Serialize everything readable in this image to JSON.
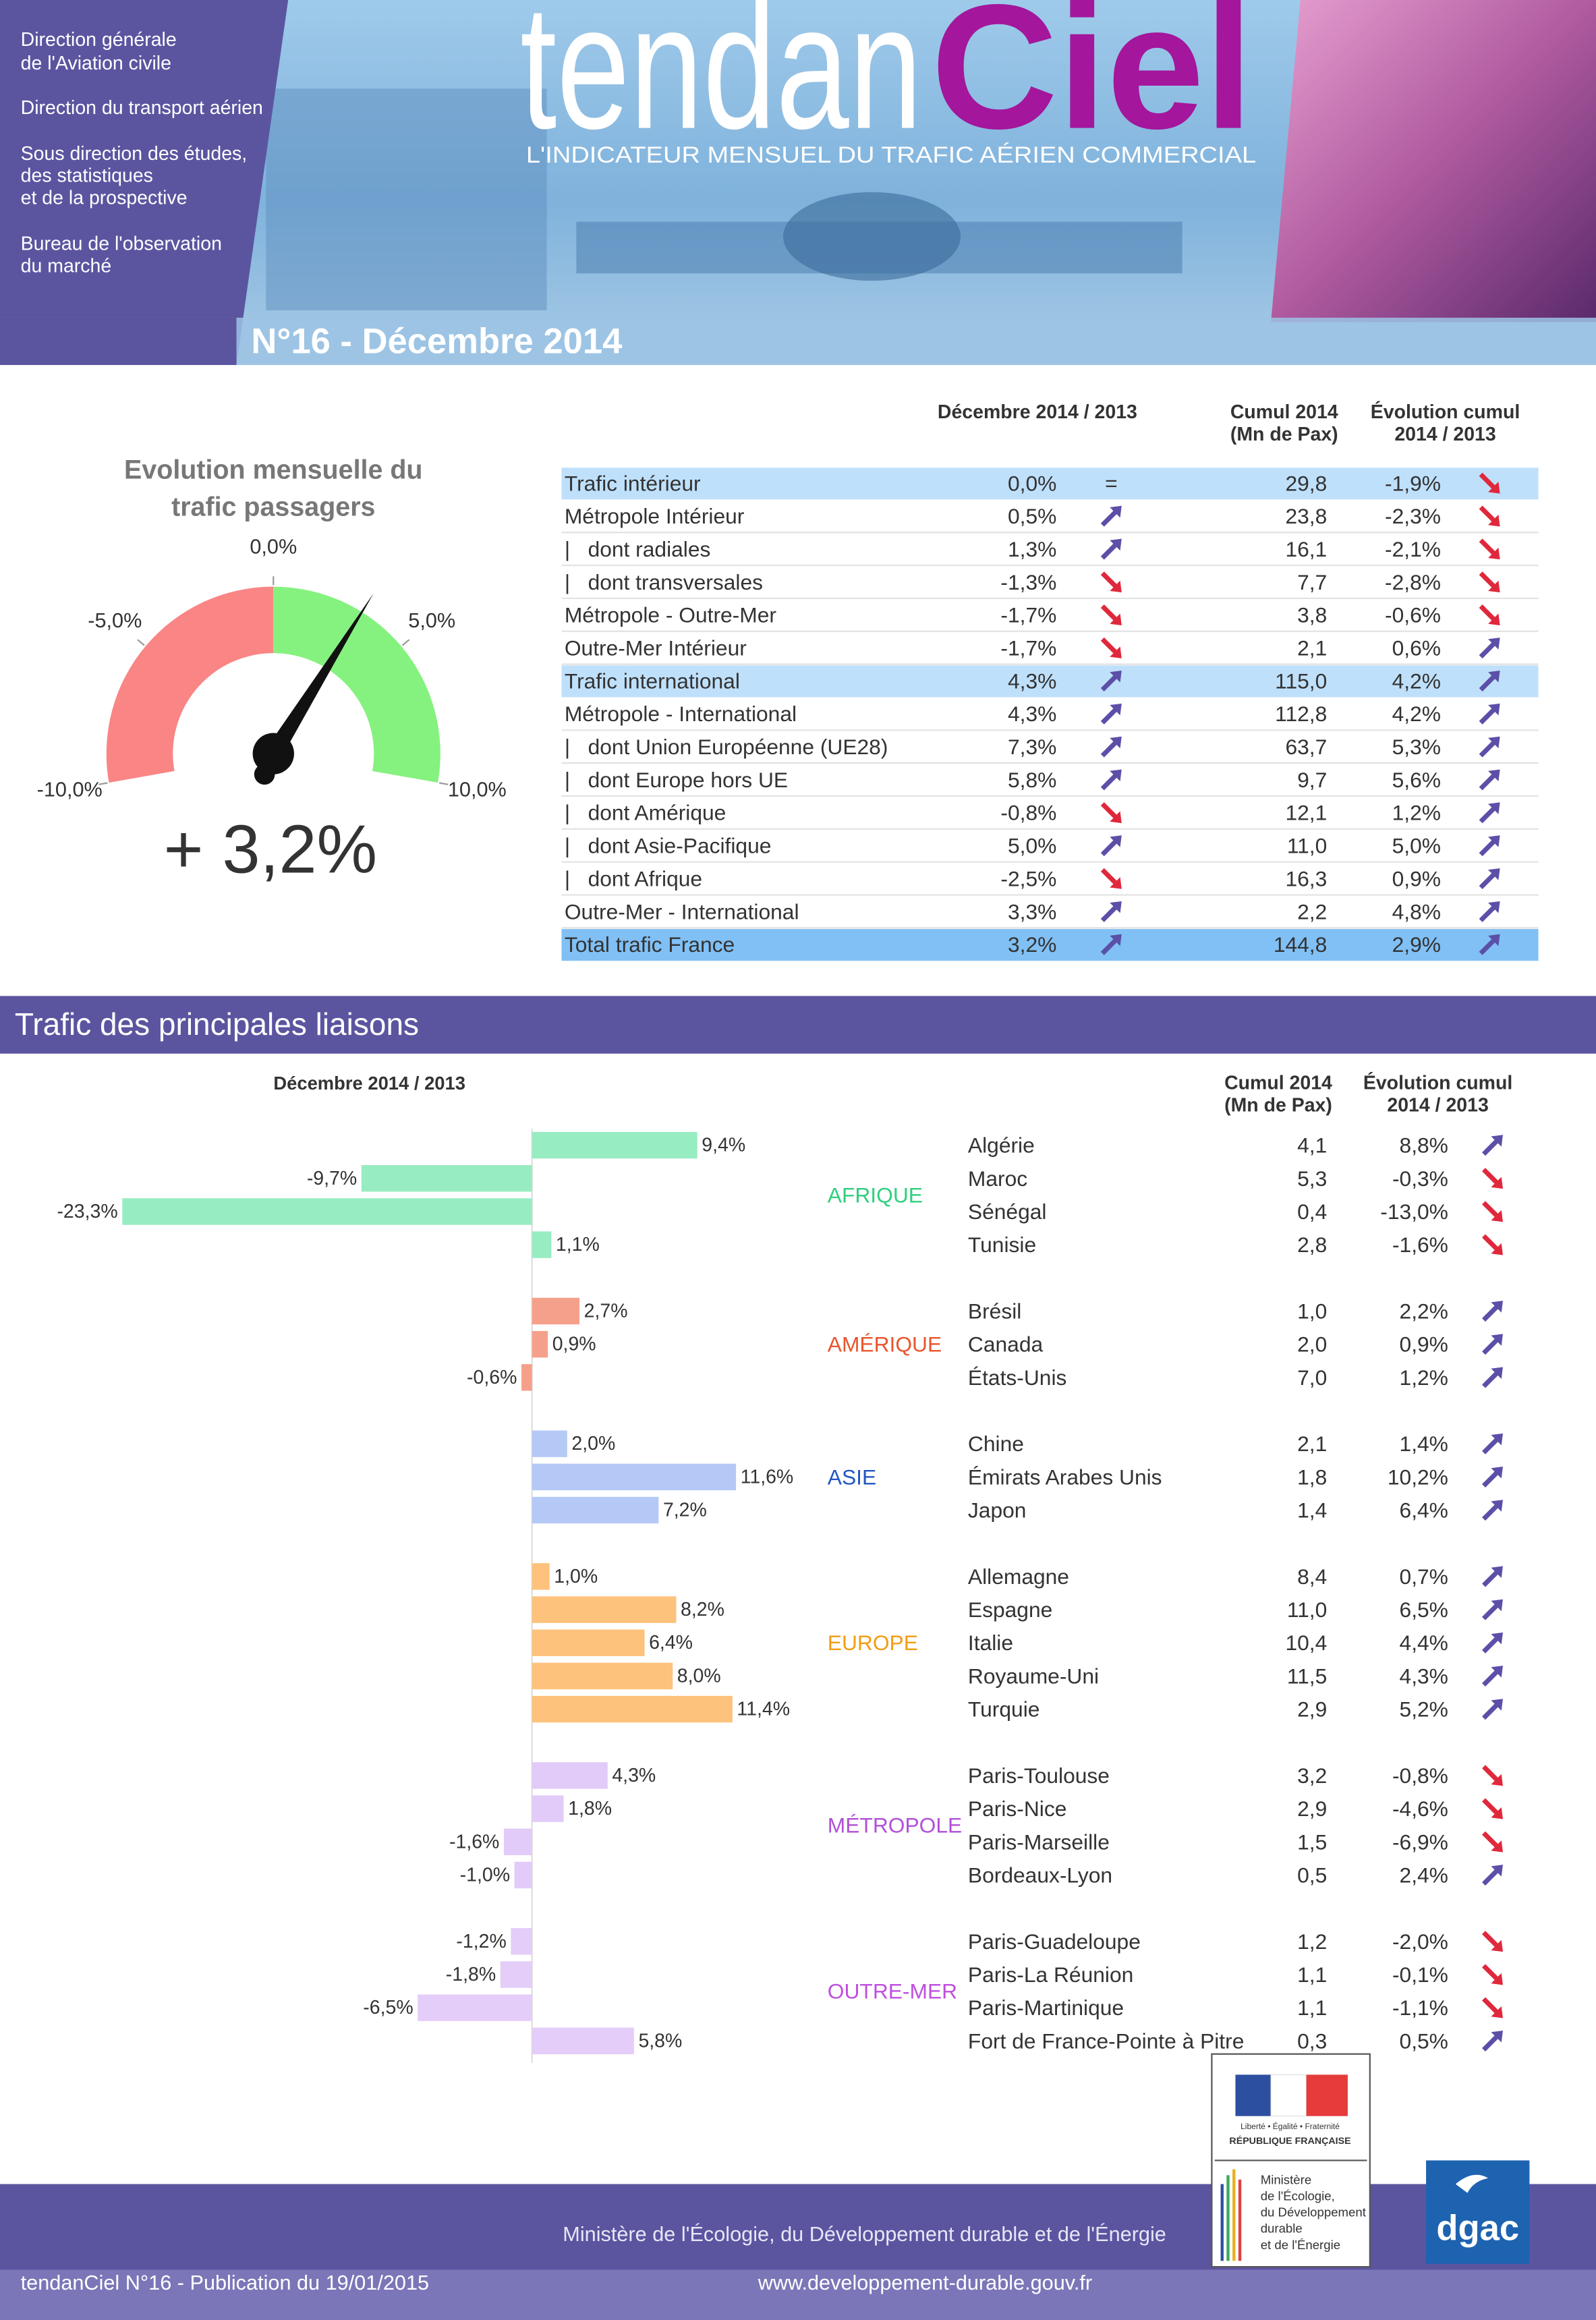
{
  "header": {
    "org_lines": [
      "Direction générale",
      "de l'Aviation civile",
      "Direction du transport aérien",
      "Sous direction des études,",
      "des statistiques",
      "et de la prospective",
      "Bureau de l'observation",
      "du marché"
    ],
    "title_a": "tendan",
    "title_b": "Ciel",
    "subtitle": "L'INDICATEUR MENSUEL DU TRAFIC AÉRIEN COMMERCIAL",
    "issue": "N°16 - Décembre 2014"
  },
  "gauge": {
    "title_lines": [
      "Evolution mensuelle du",
      "trafic passagers"
    ],
    "value": 3.2,
    "value_label": "+ 3,2%",
    "lim": [
      -10,
      10
    ],
    "ticks": [
      {
        "value": -10,
        "label": "-10,0%"
      },
      {
        "value": -5,
        "label": "-5,0%"
      },
      {
        "value": 0,
        "label": "0,0%"
      },
      {
        "value": 5,
        "label": "5,0%"
      },
      {
        "value": 10,
        "label": "10,0%"
      }
    ]
  },
  "table": {
    "headers": [
      [
        "Décembre 2014 / 2013"
      ],
      [
        "Cumul 2014",
        "(Mn de Pax)"
      ],
      [
        "Évolution cumul",
        "2014 / 2013"
      ]
    ],
    "rows": [
      {
        "label": "Trafic intérieur",
        "dec": "0,0%",
        "trend": "=",
        "cumul": "29,8",
        "evol": "-1,9%",
        "evol_trend": "down",
        "style": "highlight"
      },
      {
        "label": "Métropole Intérieur",
        "dec": "0,5%",
        "trend": "up",
        "cumul": "23,8",
        "evol": "-2,3%",
        "evol_trend": "down"
      },
      {
        "label": "|   dont radiales",
        "dec": "1,3%",
        "trend": "up",
        "cumul": "16,1",
        "evol": "-2,1%",
        "evol_trend": "down"
      },
      {
        "label": "|   dont transversales",
        "dec": "-1,3%",
        "trend": "down",
        "cumul": "7,7",
        "evol": "-2,8%",
        "evol_trend": "down"
      },
      {
        "label": "Métropole - Outre-Mer",
        "dec": "-1,7%",
        "trend": "down",
        "cumul": "3,8",
        "evol": "-0,6%",
        "evol_trend": "down"
      },
      {
        "label": "Outre-Mer Intérieur",
        "dec": "-1,7%",
        "trend": "down",
        "cumul": "2,1",
        "evol": "0,6%",
        "evol_trend": "up"
      },
      {
        "label": "Trafic international",
        "dec": "4,3%",
        "trend": "up",
        "cumul": "115,0",
        "evol": "4,2%",
        "evol_trend": "up",
        "style": "highlight"
      },
      {
        "label": "Métropole - International",
        "dec": "4,3%",
        "trend": "up",
        "cumul": "112,8",
        "evol": "4,2%",
        "evol_trend": "up"
      },
      {
        "label": "|   dont Union Européenne (UE28)",
        "dec": "7,3%",
        "trend": "up",
        "cumul": "63,7",
        "evol": "5,3%",
        "evol_trend": "up"
      },
      {
        "label": "|   dont Europe hors UE",
        "dec": "5,8%",
        "trend": "up",
        "cumul": "9,7",
        "evol": "5,6%",
        "evol_trend": "up"
      },
      {
        "label": "|   dont Amérique",
        "dec": "-0,8%",
        "trend": "down",
        "cumul": "12,1",
        "evol": "1,2%",
        "evol_trend": "up"
      },
      {
        "label": "|   dont Asie-Pacifique",
        "dec": "5,0%",
        "trend": "up",
        "cumul": "11,0",
        "evol": "5,0%",
        "evol_trend": "up"
      },
      {
        "label": "|   dont Afrique",
        "dec": "-2,5%",
        "trend": "down",
        "cumul": "16,3",
        "evol": "0,9%",
        "evol_trend": "up"
      },
      {
        "label": "Outre-Mer - International",
        "dec": "3,3%",
        "trend": "up",
        "cumul": "2,2",
        "evol": "4,8%",
        "evol_trend": "up"
      },
      {
        "label": "Total trafic France",
        "dec": "3,2%",
        "trend": "up",
        "cumul": "144,8",
        "evol": "2,9%",
        "evol_trend": "up",
        "style": "total"
      }
    ]
  },
  "liaisons": {
    "title": "Trafic des principales liaisons",
    "bar_header": "Décembre 2014 / 2013",
    "headers": [
      [
        "Cumul 2014",
        "(Mn de Pax)"
      ],
      [
        "Évolution cumul",
        "2014 / 2013"
      ]
    ],
    "groups": [
      {
        "name": "AFRIQUE",
        "color": "#2fcf7f",
        "bar_color": "#98ecc2",
        "items": [
          {
            "label": "Algérie",
            "value": 9.4,
            "value_label": "9,4%",
            "cumul": "4,1",
            "evol": "8,8%",
            "trend": "up"
          },
          {
            "label": "Maroc",
            "value": -9.7,
            "value_label": "-9,7%",
            "cumul": "5,3",
            "evol": "-0,3%",
            "trend": "down"
          },
          {
            "label": "Sénégal",
            "value": -23.3,
            "value_label": "-23,3%",
            "cumul": "0,4",
            "evol": "-13,0%",
            "trend": "down"
          },
          {
            "label": "Tunisie",
            "value": 1.1,
            "value_label": "1,1%",
            "cumul": "2,8",
            "evol": "-1,6%",
            "trend": "down"
          }
        ]
      },
      {
        "name": "AMÉRIQUE",
        "color": "#e8552e",
        "bar_color": "#f5a08a",
        "items": [
          {
            "label": "Brésil",
            "value": 2.7,
            "value_label": "2,7%",
            "cumul": "1,0",
            "evol": "2,2%",
            "trend": "up"
          },
          {
            "label": "Canada",
            "value": 0.9,
            "value_label": "0,9%",
            "cumul": "2,0",
            "evol": "0,9%",
            "trend": "up"
          },
          {
            "label": "États-Unis",
            "value": -0.6,
            "value_label": "-0,6%",
            "cumul": "7,0",
            "evol": "1,2%",
            "trend": "up"
          }
        ]
      },
      {
        "name": "ASIE",
        "color": "#2255c4",
        "bar_color": "#b5c9f6",
        "items": [
          {
            "label": "Chine",
            "value": 2.0,
            "value_label": "2,0%",
            "cumul": "2,1",
            "evol": "1,4%",
            "trend": "up"
          },
          {
            "label": "Émirats Arabes Unis",
            "value": 11.6,
            "value_label": "11,6%",
            "cumul": "1,8",
            "evol": "10,2%",
            "trend": "up"
          },
          {
            "label": "Japon",
            "value": 7.2,
            "value_label": "7,2%",
            "cumul": "1,4",
            "evol": "6,4%",
            "trend": "up"
          }
        ]
      },
      {
        "name": "EUROPE",
        "color": "#f39c12",
        "bar_color": "#fdc27c",
        "items": [
          {
            "label": "Allemagne",
            "value": 1.0,
            "value_label": "1,0%",
            "cumul": "8,4",
            "evol": "0,7%",
            "trend": "up"
          },
          {
            "label": "Espagne",
            "value": 8.2,
            "value_label": "8,2%",
            "cumul": "11,0",
            "evol": "6,5%",
            "trend": "up"
          },
          {
            "label": "Italie",
            "value": 6.4,
            "value_label": "6,4%",
            "cumul": "10,4",
            "evol": "4,4%",
            "trend": "up"
          },
          {
            "label": "Royaume-Uni",
            "value": 8.0,
            "value_label": "8,0%",
            "cumul": "11,5",
            "evol": "4,3%",
            "trend": "up"
          },
          {
            "label": "Turquie",
            "value": 11.4,
            "value_label": "11,4%",
            "cumul": "2,9",
            "evol": "5,2%",
            "trend": "up"
          }
        ]
      },
      {
        "name": "MÉTROPOLE",
        "color": "#b24fd6",
        "bar_color": "#e2cbf8",
        "items": [
          {
            "label": "Paris-Toulouse",
            "value": 4.3,
            "value_label": "4,3%",
            "cumul": "3,2",
            "evol": "-0,8%",
            "trend": "down"
          },
          {
            "label": "Paris-Nice",
            "value": 1.8,
            "value_label": "1,8%",
            "cumul": "2,9",
            "evol": "-4,6%",
            "trend": "down"
          },
          {
            "label": "Paris-Marseille",
            "value": -1.6,
            "value_label": "-1,6%",
            "cumul": "1,5",
            "evol": "-6,9%",
            "trend": "down"
          },
          {
            "label": "Bordeaux-Lyon",
            "value": -1.0,
            "value_label": "-1,0%",
            "cumul": "0,5",
            "evol": "2,4%",
            "trend": "up"
          }
        ]
      },
      {
        "name": "OUTRE-MER",
        "color": "#c04fe0",
        "bar_color": "#e4cdf8",
        "items": [
          {
            "label": "Paris-Guadeloupe",
            "value": -1.2,
            "value_label": "-1,2%",
            "cumul": "1,2",
            "evol": "-2,0%",
            "trend": "down"
          },
          {
            "label": "Paris-La Réunion",
            "value": -1.8,
            "value_label": "-1,8%",
            "cumul": "1,1",
            "evol": "-0,1%",
            "trend": "down"
          },
          {
            "label": "Paris-Martinique",
            "value": -6.5,
            "value_label": "-6,5%",
            "cumul": "1,1",
            "evol": "-1,1%",
            "trend": "down"
          },
          {
            "label": "Fort de France-Pointe à Pitre",
            "value": 5.8,
            "value_label": "5,8%",
            "cumul": "0,3",
            "evol": "0,5%",
            "trend": "up"
          }
        ]
      }
    ]
  },
  "footer": {
    "republique": [
      "Liberté • Égalité • Fraternité",
      "RÉPUBLIQUE FRANÇAISE"
    ],
    "ministry_logo": [
      "Ministère",
      "de l'Écologie,",
      "du Développement",
      "durable",
      "et de l'Énergie"
    ],
    "dgac": "dgac",
    "ministry": "Ministère de l'Écologie, du Développement durable et de l'Énergie",
    "publication": "tendanCiel N°16 - Publication du 19/01/2015",
    "url": "www.developpement-durable.gouv.fr"
  }
}
